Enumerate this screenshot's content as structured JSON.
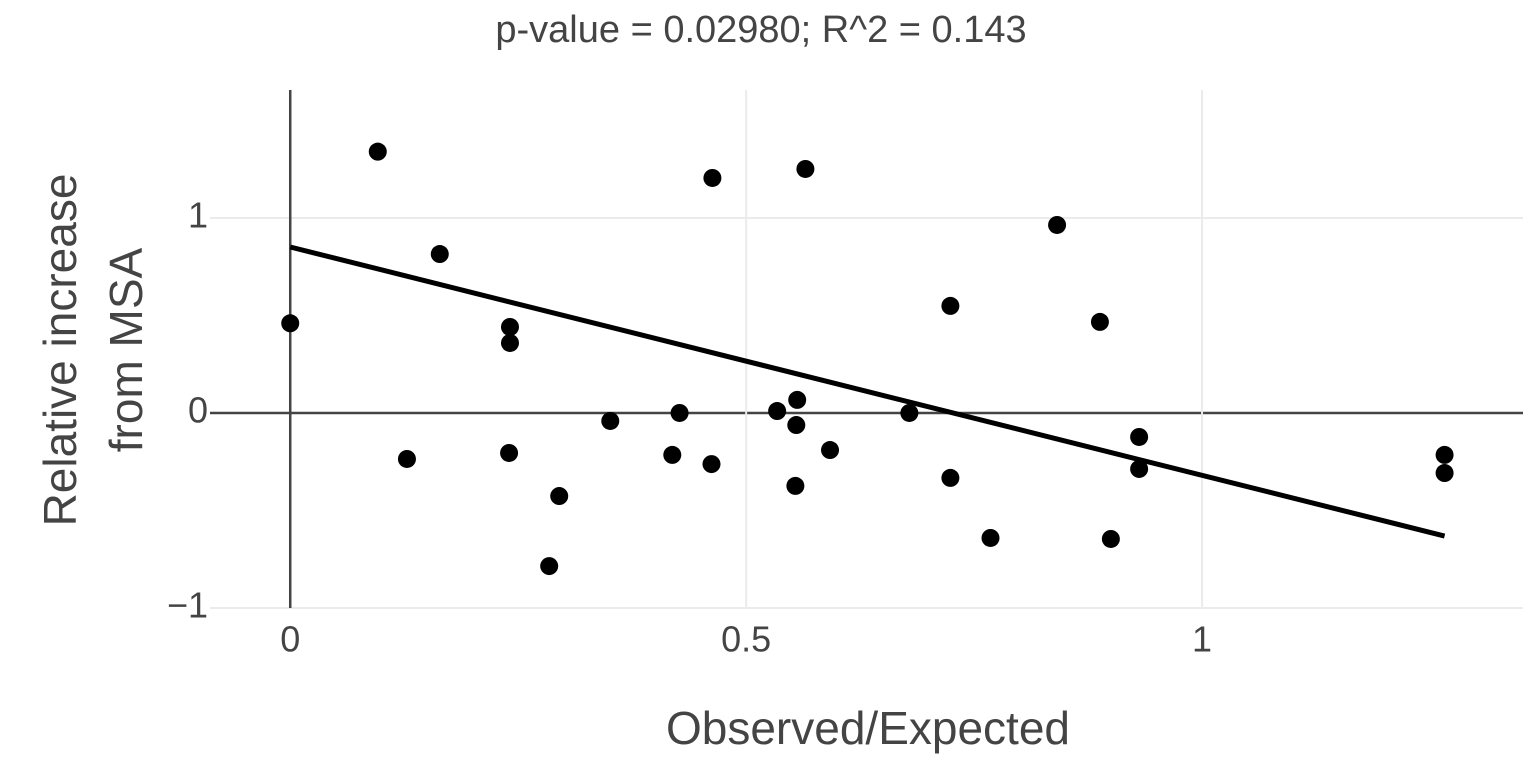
{
  "chart_data": {
    "type": "scatter",
    "title": "p-value = 0.02980; R^2 = 0.143",
    "x_label": "Observed/Expected",
    "y_label": [
      "Relative increase",
      "from MSA"
    ],
    "x": [
      0,
      0.096,
      0.128,
      0.164,
      0.241,
      0.241,
      0.24,
      0.295,
      0.284,
      0.351,
      0.419,
      0.427,
      0.462,
      0.463,
      0.534,
      0.556,
      0.555,
      0.554,
      0.565,
      0.592,
      0.679,
      0.724,
      0.724,
      0.768,
      0.841,
      0.888,
      0.9,
      0.931,
      0.931,
      1.266,
      1.266
    ],
    "values": [
      0.46,
      1.34,
      -0.236,
      0.815,
      0.441,
      0.359,
      -0.205,
      -0.426,
      -0.785,
      -0.041,
      -0.215,
      0.0,
      -0.262,
      1.205,
      0.01,
      0.067,
      -0.062,
      -0.374,
      1.251,
      -0.19,
      0.0,
      0.549,
      -0.333,
      -0.641,
      0.964,
      0.467,
      -0.646,
      -0.123,
      -0.287,
      -0.215,
      -0.308
    ],
    "color": "#000000",
    "fit": {
      "x": [
        0,
        1.266
      ],
      "values": [
        0.851,
        -0.631
      ],
      "color": "#000000"
    },
    "xlim": [
      -0.088,
      1.352
    ],
    "ylim": [
      -1,
      1.656
    ],
    "xticks": [
      0,
      0.5,
      1
    ],
    "yticks": [
      {
        "value": -1,
        "label": "−1"
      },
      0,
      1
    ],
    "grid": true
  }
}
